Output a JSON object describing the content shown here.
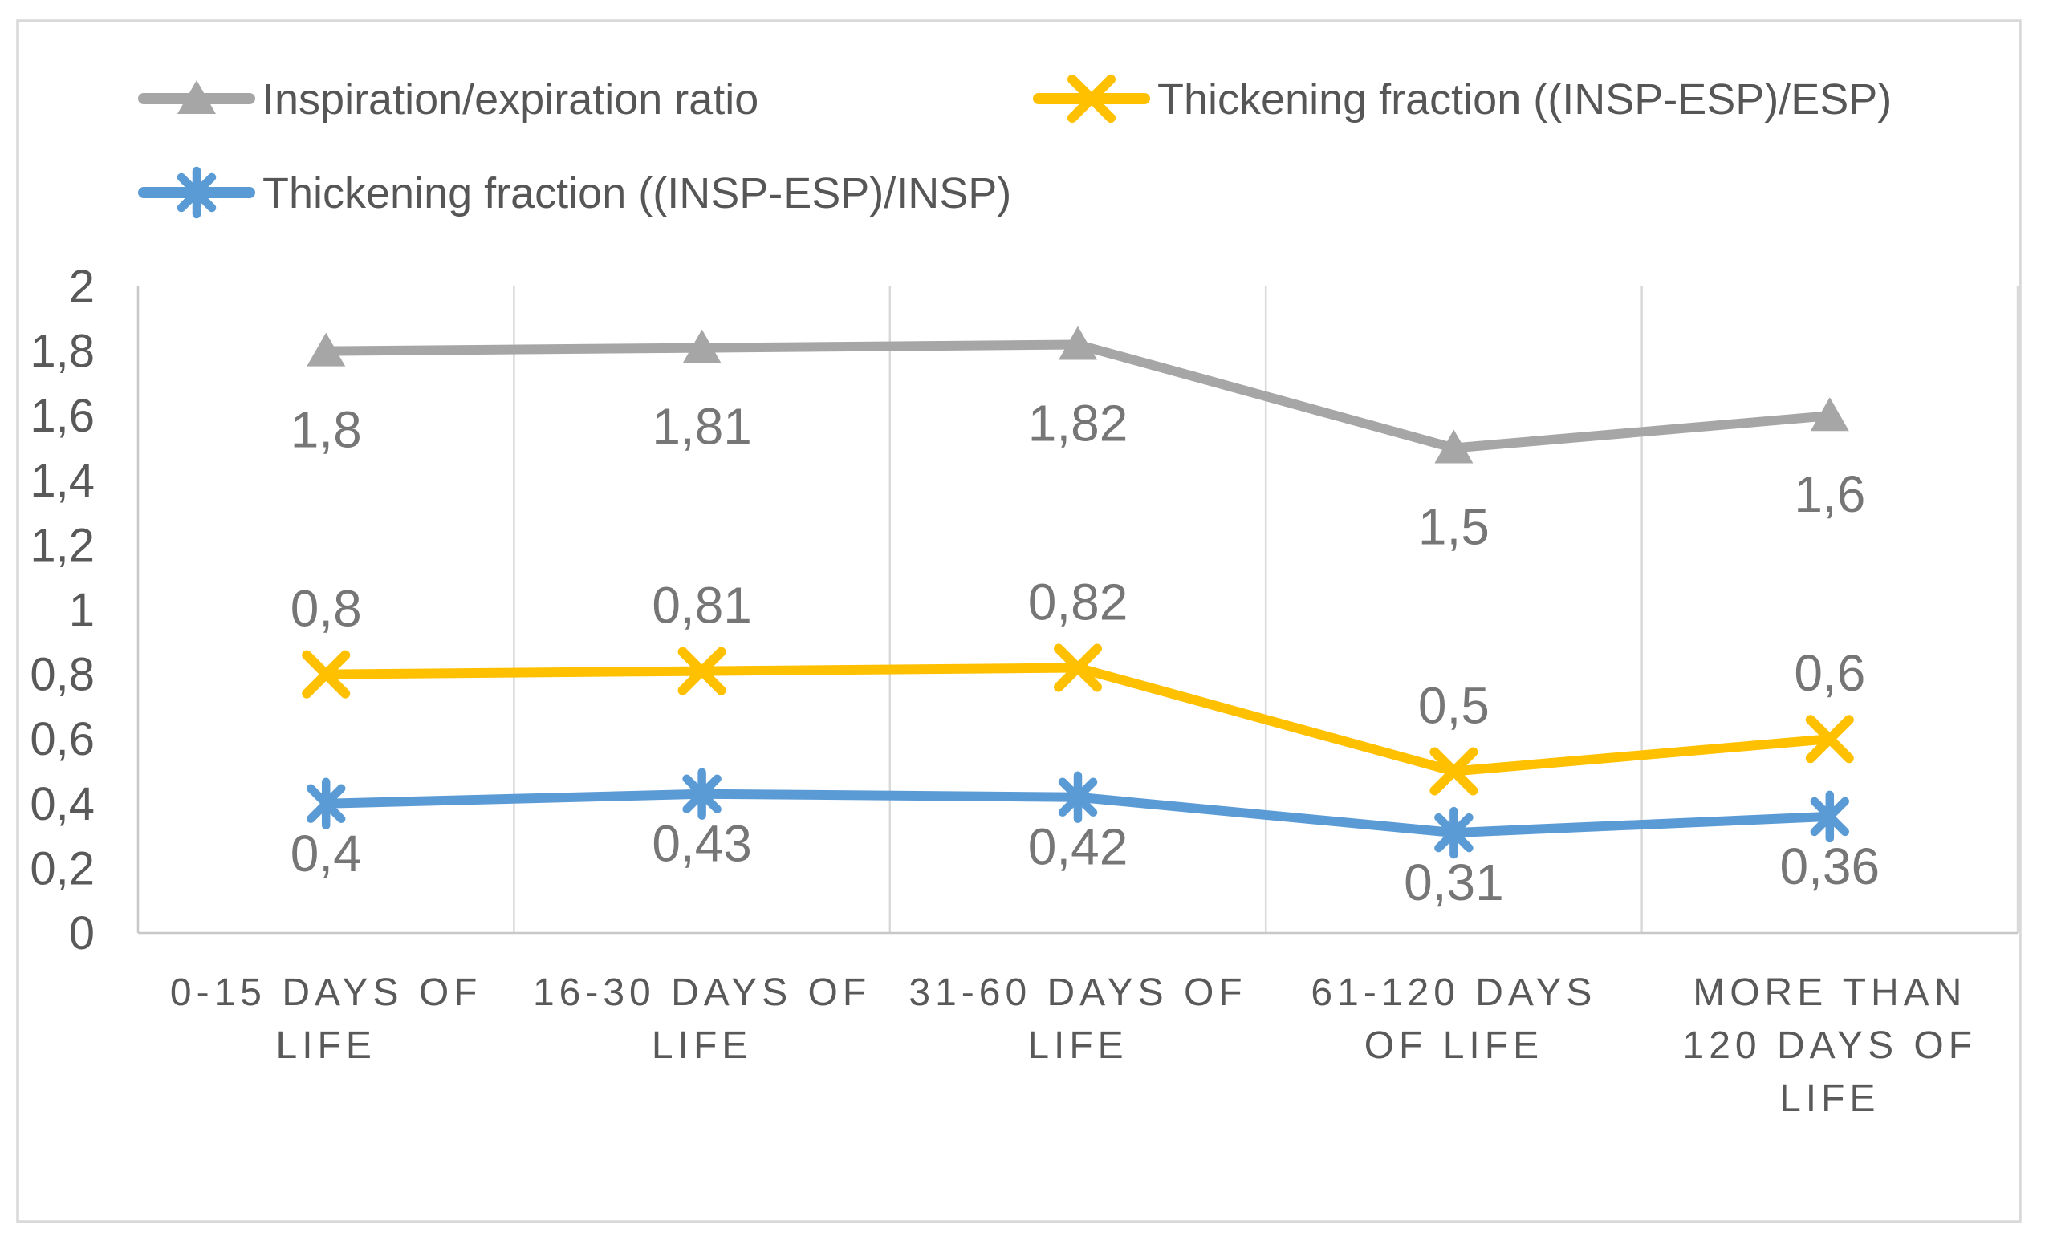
{
  "chart_data": {
    "type": "line",
    "title": "",
    "decimal_separator": ",",
    "categories": [
      "0-15 DAYS OF LIFE",
      "16-30 DAYS OF LIFE",
      "31-60 DAYS OF LIFE",
      "61-120 DAYS OF LIFE",
      "MORE THAN 120 DAYS OF LIFE"
    ],
    "category_label_lines": [
      [
        "0-15 DAYS OF",
        "LIFE"
      ],
      [
        "16-30 DAYS OF",
        "LIFE"
      ],
      [
        "31-60 DAYS OF",
        "LIFE"
      ],
      [
        "61-120 DAYS",
        "OF LIFE"
      ],
      [
        "MORE THAN",
        "120 DAYS OF",
        "LIFE"
      ]
    ],
    "series": [
      {
        "name": "Inspiration/expiration ratio",
        "color": "#a6a6a6",
        "marker": "triangle",
        "values": [
          1.8,
          1.81,
          1.82,
          1.5,
          1.6
        ],
        "labels": [
          "1,8",
          "1,81",
          "1,82",
          "1,5",
          "1,6"
        ],
        "label_side": "below"
      },
      {
        "name": "Thickening fraction ((INSP-ESP)/ESP)",
        "color": "#ffc000",
        "marker": "x",
        "values": [
          0.8,
          0.81,
          0.82,
          0.5,
          0.6
        ],
        "labels": [
          "0,8",
          "0,81",
          "0,82",
          "0,5",
          "0,6"
        ],
        "label_side": "above"
      },
      {
        "name": "Thickening fraction ((INSP-ESP)/INSP)",
        "color": "#5b9bd5",
        "marker": "asterisk",
        "values": [
          0.4,
          0.43,
          0.42,
          0.31,
          0.36
        ],
        "labels": [
          "0,4",
          "0,43",
          "0,42",
          "0,31",
          "0,36"
        ],
        "label_side": "below"
      }
    ],
    "y_axis": {
      "min": 0,
      "max": 2,
      "tick_step": 0.2,
      "tick_labels": [
        "2",
        "1,8",
        "1,6",
        "1,4",
        "1,2",
        "1",
        "0,8",
        "0,6",
        "0,4",
        "0,2",
        "0"
      ]
    },
    "x_axis": {
      "gridlines": "vertical category boundaries"
    },
    "legend": {
      "position": "top-left",
      "rows": [
        [
          0,
          1
        ],
        [
          2
        ]
      ]
    },
    "grid": "vertical only",
    "ylim": [
      0,
      2
    ],
    "colors": {
      "frame_border": "#d9d9d9",
      "gridline": "#d9d9d9",
      "axis_line": "#c8c8c8",
      "tick_label": "#595959",
      "category_label": "#595959",
      "data_label": "#767676",
      "legend_text": "#565656",
      "background": "#ffffff"
    }
  }
}
